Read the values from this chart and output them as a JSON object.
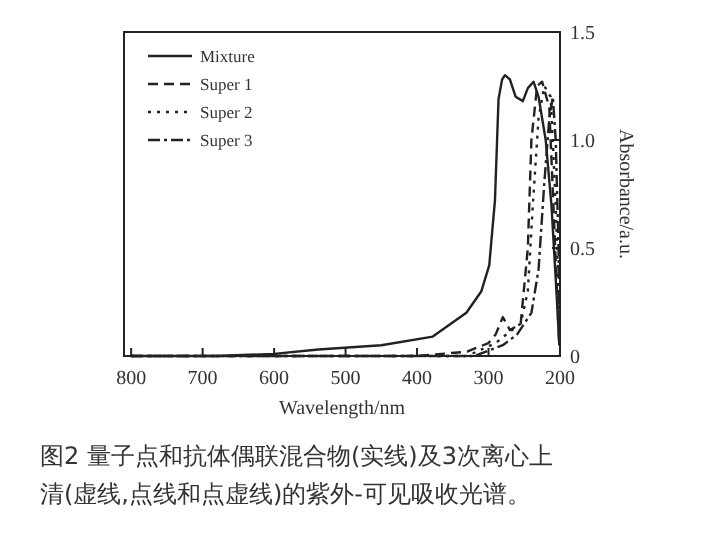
{
  "chart_data": {
    "type": "line",
    "xlabel": "Wavelength/nm",
    "ylabel": "Absorbance/a.u.",
    "annotations": [
      "图2 量子点和抗体偶联混合物(实线)及3次离心上清(虚线,点线和点虚线)的紫外-可见吸收光谱。"
    ],
    "xlim": [
      810,
      200
    ],
    "xticks": [
      800,
      700,
      600,
      500,
      400,
      300,
      200
    ],
    "ylim": [
      0,
      1.5
    ],
    "yticks": [
      0,
      {
        "value": 0.5,
        "label": "0.5"
      },
      {
        "value": 1,
        "label": "1.0"
      },
      {
        "value": 1.5,
        "label": "1.5"
      }
    ],
    "grid": false,
    "legend": "top left",
    "series": [
      {
        "name": "Mixture",
        "color": "#222222",
        "line_style": "solid",
        "x": [
          800,
          700,
          680,
          600,
          538,
          450,
          378,
          331,
          310,
          299,
          291,
          286,
          281,
          277,
          270,
          262,
          252,
          245,
          237,
          230,
          220,
          212,
          205,
          201
        ],
        "values": [
          0,
          0,
          0,
          0.01,
          0.03,
          0.05,
          0.09,
          0.2,
          0.3,
          0.42,
          0.72,
          1.19,
          1.28,
          1.3,
          1.28,
          1.2,
          1.18,
          1.24,
          1.27,
          1.2,
          1.0,
          0.7,
          0.3,
          0.05
        ]
      },
      {
        "name": "Super 1",
        "color": "#222222",
        "line_style": "dashed",
        "x": [
          800,
          400,
          330,
          300,
          290,
          280,
          270,
          255,
          245,
          240,
          232,
          225,
          215,
          208,
          203,
          201
        ],
        "values": [
          0,
          0,
          0.02,
          0.06,
          0.1,
          0.18,
          0.12,
          0.15,
          0.5,
          1.0,
          1.25,
          1.27,
          1.15,
          0.6,
          0.2,
          0.05
        ]
      },
      {
        "name": "Super 2",
        "color": "#222222",
        "line_style": "dotted",
        "x": [
          800,
          400,
          330,
          290,
          275,
          255,
          245,
          238,
          230,
          222,
          213,
          206,
          202,
          201
        ],
        "values": [
          0,
          0,
          0,
          0.06,
          0.1,
          0.15,
          0.3,
          0.7,
          1.1,
          1.25,
          1.2,
          0.7,
          0.3,
          0.05
        ]
      },
      {
        "name": "Super 3",
        "color": "#222222",
        "line_style": "dashdot",
        "x": [
          800,
          400,
          320,
          280,
          260,
          240,
          230,
          222,
          215,
          210,
          206,
          202,
          201
        ],
        "values": [
          0,
          0,
          0,
          0.05,
          0.1,
          0.2,
          0.4,
          0.8,
          1.1,
          1.2,
          1.0,
          0.5,
          0.05
        ]
      }
    ]
  }
}
